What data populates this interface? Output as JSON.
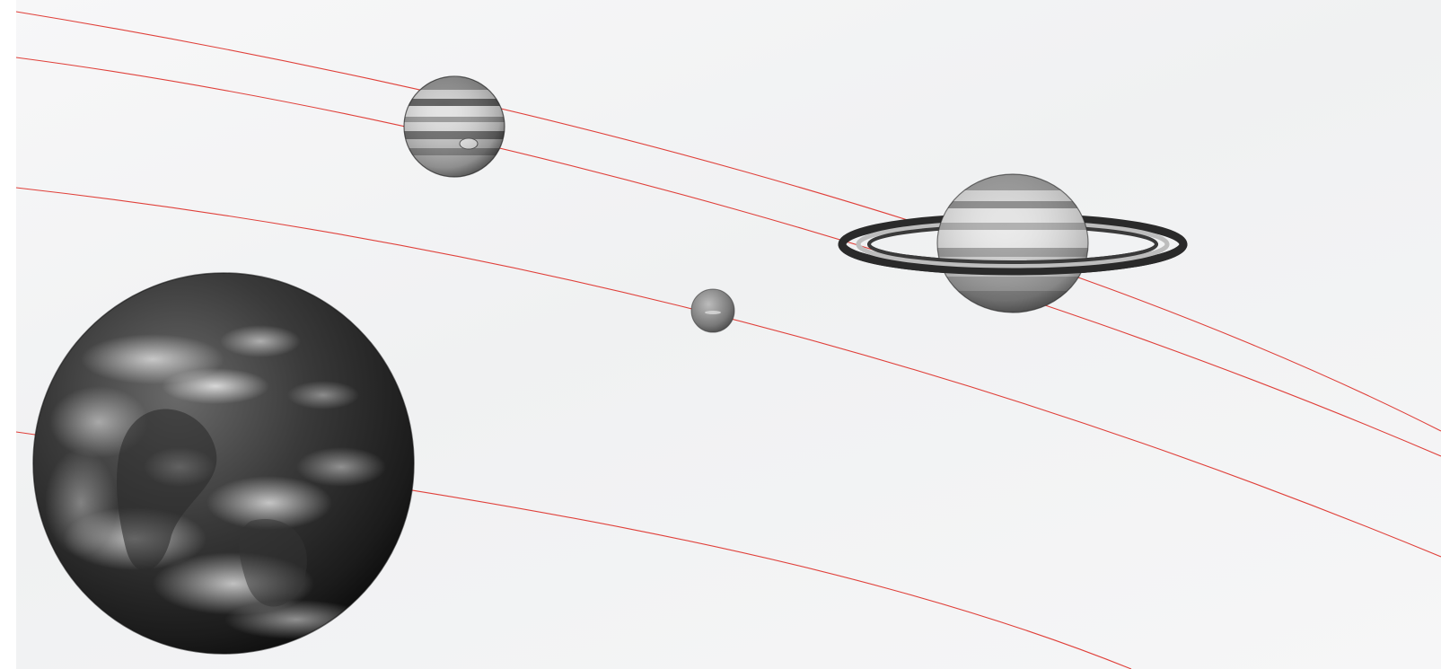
{
  "scene": {
    "orbit_color": "#e0403a",
    "panel_color": "#f2f3f4",
    "planets": [
      {
        "name": "earth",
        "icon": "earth-icon"
      },
      {
        "name": "jupiter",
        "icon": "jupiter-icon"
      },
      {
        "name": "saturn",
        "icon": "saturn-icon"
      },
      {
        "name": "small-planet",
        "icon": "small-planet-icon"
      }
    ]
  }
}
